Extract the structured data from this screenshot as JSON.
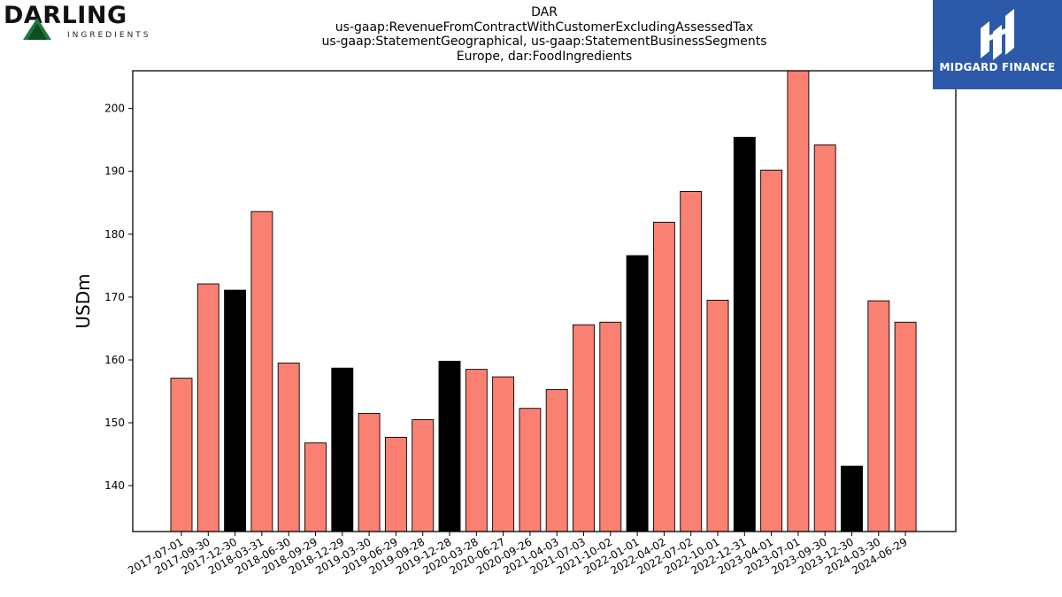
{
  "header": {
    "title_lines": [
      "DAR",
      "us-gaap:RevenueFromContractWithCustomerExcludingAssessedTax",
      "us-gaap:StatementGeographical, us-gaap:StatementBusinessSegments",
      "Europe, dar:FoodIngredients"
    ]
  },
  "logos": {
    "left": {
      "word": "DARLING",
      "sub": "INGREDIENTS",
      "icon": "triangle-mark-icon"
    },
    "right": {
      "word": "MIDGARD FINANCE",
      "icon": "midgard-mark-icon"
    }
  },
  "colors": {
    "bar_default": "#fa8072",
    "bar_highlight": "#000000",
    "brand_blue": "#2d5aa8"
  },
  "chart_data": {
    "type": "bar",
    "title": "DAR\nus-gaap:RevenueFromContractWithCustomerExcludingAssessedTax\nus-gaap:StatementGeographical, us-gaap:StatementBusinessSegments\nEurope, dar:FoodIngredients",
    "xlabel": "",
    "ylabel": "USDm",
    "ylim": [
      132.7,
      206
    ],
    "yticks": [
      140,
      150,
      160,
      170,
      180,
      190,
      200
    ],
    "grid": false,
    "categories": [
      "2017-07-01",
      "2017-09-30",
      "2017-12-30",
      "2018-03-31",
      "2018-06-30",
      "2018-09-29",
      "2018-12-29",
      "2019-03-30",
      "2019-06-29",
      "2019-09-28",
      "2019-12-28",
      "2020-03-28",
      "2020-06-27",
      "2020-09-26",
      "2021-04-03",
      "2021-07-03",
      "2021-10-02",
      "2022-01-01",
      "2022-04-02",
      "2022-07-02",
      "2022-10-01",
      "2022-12-31",
      "2023-04-01",
      "2023-07-01",
      "2023-09-30",
      "2023-12-30",
      "2024-03-30",
      "2024-06-29"
    ],
    "values": [
      157.1,
      172.1,
      171.1,
      183.6,
      159.5,
      146.8,
      158.7,
      151.5,
      147.7,
      150.5,
      159.8,
      158.5,
      157.3,
      152.3,
      155.3,
      165.6,
      166.0,
      176.6,
      181.9,
      186.8,
      169.5,
      195.4,
      190.2,
      206.5,
      194.2,
      143.1,
      169.4,
      166.0
    ],
    "highlight": [
      false,
      false,
      true,
      false,
      false,
      false,
      true,
      false,
      false,
      false,
      true,
      false,
      false,
      false,
      false,
      false,
      false,
      true,
      false,
      false,
      false,
      true,
      false,
      false,
      false,
      true,
      false,
      false
    ]
  }
}
